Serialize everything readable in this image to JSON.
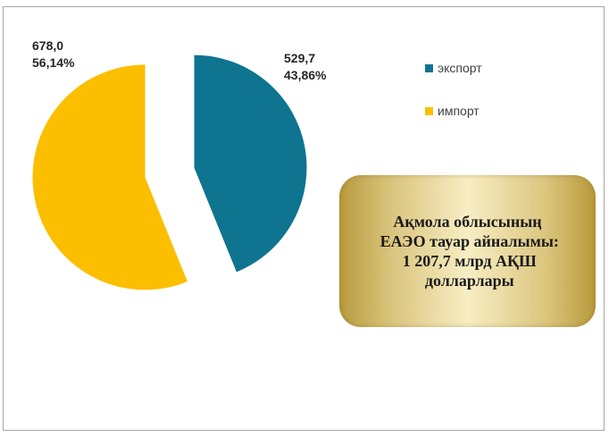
{
  "chart_data": {
    "type": "pie",
    "categories": [
      "экспорт",
      "импорт"
    ],
    "values": [
      529.7,
      678.0
    ],
    "percentages": [
      "43,86%",
      "56,14%"
    ],
    "value_labels": [
      "529,7",
      "678,0"
    ],
    "colors": [
      "#0e7490",
      "#fbbf00"
    ],
    "legend_position": "right",
    "start_angle_deg": 0,
    "explode": true
  },
  "legend": {
    "items": [
      {
        "label": "экспорт",
        "color": "#0e7490"
      },
      {
        "label": "импорт",
        "color": "#fbbf00"
      }
    ]
  },
  "labels": {
    "export_value": "529,7",
    "export_percent": "43,86%",
    "import_value": "678,0",
    "import_percent": "56,14%"
  },
  "info_box": {
    "text": "Ақмола облысының\n ЕАЭО тауар айналымы:\n 1 207,7 млрд АҚШ\n долларлары"
  }
}
